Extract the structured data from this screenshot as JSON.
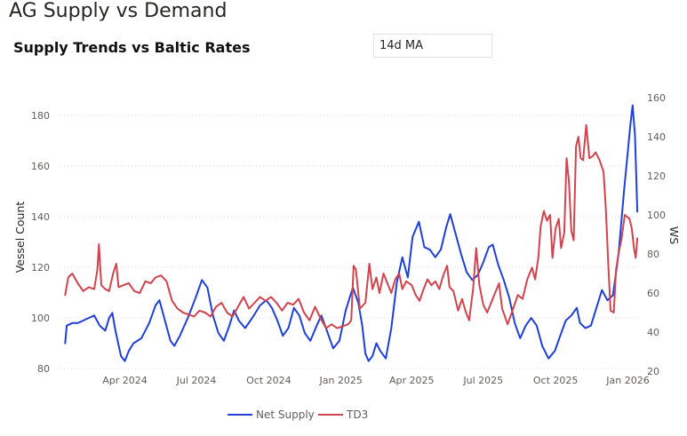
{
  "page": {
    "title": "AG Supply vs Demand"
  },
  "visual": {
    "title": "Supply Trends vs Baltic Rates"
  },
  "ma_selector": {
    "value": "14d MA"
  },
  "colors": {
    "net_supply": "#1f3fd6",
    "td3": "#cf444e",
    "grid": "#d9d9d9"
  },
  "chart_data": {
    "type": "line",
    "title": "Supply Trends vs Baltic Rates",
    "ylabel": "Vessel Count",
    "y2label": "WS",
    "xlabel": "",
    "x_ticks": [
      "Apr 2024",
      "Jul 2024",
      "Oct 2024",
      "Jan 2025",
      "Apr 2025",
      "Jul 2025",
      "Oct 2025",
      "Jan 2026"
    ],
    "y_ticks": [
      80,
      100,
      120,
      140,
      160,
      180
    ],
    "y2_ticks": [
      20,
      40,
      60,
      80,
      100,
      120,
      140,
      160
    ],
    "ylim": [
      79,
      187
    ],
    "y2lim": [
      20,
      160
    ],
    "xlim": [
      "2024-01-10",
      "2026-01-14"
    ],
    "grid": true,
    "legend": "bottom-center",
    "series": [
      {
        "name": "Net Supply",
        "axis": "left",
        "points": [
          [
            "2024-01-16",
            90
          ],
          [
            "2024-01-18",
            97
          ],
          [
            "2024-01-25",
            98
          ],
          [
            "2024-02-01",
            98
          ],
          [
            "2024-02-08",
            99
          ],
          [
            "2024-02-15",
            100
          ],
          [
            "2024-02-22",
            101
          ],
          [
            "2024-02-29",
            97
          ],
          [
            "2024-03-07",
            95
          ],
          [
            "2024-03-12",
            100
          ],
          [
            "2024-03-16",
            102
          ],
          [
            "2024-03-20",
            95
          ],
          [
            "2024-03-27",
            85
          ],
          [
            "2024-04-01",
            83
          ],
          [
            "2024-04-06",
            87
          ],
          [
            "2024-04-12",
            90
          ],
          [
            "2024-04-22",
            92
          ],
          [
            "2024-05-02",
            98
          ],
          [
            "2024-05-10",
            105
          ],
          [
            "2024-05-15",
            107
          ],
          [
            "2024-05-22",
            99
          ],
          [
            "2024-05-29",
            91
          ],
          [
            "2024-06-03",
            89
          ],
          [
            "2024-06-10",
            93
          ],
          [
            "2024-06-20",
            100
          ],
          [
            "2024-06-30",
            108
          ],
          [
            "2024-07-08",
            115
          ],
          [
            "2024-07-15",
            112
          ],
          [
            "2024-07-22",
            101
          ],
          [
            "2024-07-29",
            94
          ],
          [
            "2024-08-05",
            91
          ],
          [
            "2024-08-12",
            97
          ],
          [
            "2024-08-18",
            103
          ],
          [
            "2024-08-24",
            99
          ],
          [
            "2024-09-01",
            96
          ],
          [
            "2024-09-10",
            100
          ],
          [
            "2024-09-20",
            105
          ],
          [
            "2024-09-28",
            107
          ],
          [
            "2024-10-05",
            104
          ],
          [
            "2024-10-12",
            99
          ],
          [
            "2024-10-19",
            93
          ],
          [
            "2024-10-26",
            96
          ],
          [
            "2024-11-02",
            104
          ],
          [
            "2024-11-09",
            101
          ],
          [
            "2024-11-16",
            94
          ],
          [
            "2024-11-23",
            91
          ],
          [
            "2024-12-01",
            97
          ],
          [
            "2024-12-07",
            101
          ],
          [
            "2024-12-14",
            95
          ],
          [
            "2024-12-22",
            88
          ],
          [
            "2024-12-30",
            91
          ],
          [
            "2025-01-07",
            103
          ],
          [
            "2025-01-16",
            112
          ],
          [
            "2025-01-23",
            106
          ],
          [
            "2025-01-28",
            97
          ],
          [
            "2025-02-01",
            86
          ],
          [
            "2025-02-05",
            83
          ],
          [
            "2025-02-10",
            85
          ],
          [
            "2025-02-15",
            90
          ],
          [
            "2025-02-20",
            87
          ],
          [
            "2025-02-27",
            84
          ],
          [
            "2025-03-06",
            96
          ],
          [
            "2025-03-13",
            114
          ],
          [
            "2025-03-20",
            124
          ],
          [
            "2025-03-27",
            116
          ],
          [
            "2025-04-02",
            132
          ],
          [
            "2025-04-10",
            138
          ],
          [
            "2025-04-17",
            128
          ],
          [
            "2025-04-24",
            127
          ],
          [
            "2025-05-01",
            124
          ],
          [
            "2025-05-08",
            127
          ],
          [
            "2025-05-15",
            136
          ],
          [
            "2025-05-20",
            141
          ],
          [
            "2025-05-27",
            133
          ],
          [
            "2025-06-03",
            125
          ],
          [
            "2025-06-10",
            118
          ],
          [
            "2025-06-17",
            115
          ],
          [
            "2025-06-24",
            117
          ],
          [
            "2025-07-01",
            122
          ],
          [
            "2025-07-08",
            128
          ],
          [
            "2025-07-13",
            129
          ],
          [
            "2025-07-20",
            121
          ],
          [
            "2025-07-27",
            115
          ],
          [
            "2025-08-03",
            108
          ],
          [
            "2025-08-10",
            98
          ],
          [
            "2025-08-17",
            92
          ],
          [
            "2025-08-24",
            97
          ],
          [
            "2025-08-31",
            100
          ],
          [
            "2025-09-07",
            97
          ],
          [
            "2025-09-14",
            89
          ],
          [
            "2025-09-22",
            84
          ],
          [
            "2025-09-30",
            87
          ],
          [
            "2025-10-07",
            93
          ],
          [
            "2025-10-14",
            99
          ],
          [
            "2025-10-21",
            101
          ],
          [
            "2025-10-28",
            104
          ],
          [
            "2025-11-01",
            98
          ],
          [
            "2025-11-08",
            96
          ],
          [
            "2025-11-15",
            97
          ],
          [
            "2025-11-22",
            104
          ],
          [
            "2025-11-29",
            111
          ],
          [
            "2025-12-06",
            107
          ],
          [
            "2025-12-13",
            109
          ],
          [
            "2025-12-20",
            125
          ],
          [
            "2025-12-27",
            150
          ],
          [
            "2026-01-04",
            176
          ],
          [
            "2026-01-07",
            184
          ],
          [
            "2026-01-10",
            172
          ],
          [
            "2026-01-13",
            142
          ]
        ]
      },
      {
        "name": "TD3",
        "axis": "right",
        "points": [
          [
            "2024-01-16",
            59
          ],
          [
            "2024-01-20",
            68
          ],
          [
            "2024-01-25",
            70
          ],
          [
            "2024-02-01",
            65
          ],
          [
            "2024-02-08",
            61
          ],
          [
            "2024-02-15",
            63
          ],
          [
            "2024-02-22",
            62
          ],
          [
            "2024-02-26",
            72
          ],
          [
            "2024-02-28",
            85
          ],
          [
            "2024-03-02",
            64
          ],
          [
            "2024-03-07",
            62
          ],
          [
            "2024-03-12",
            61
          ],
          [
            "2024-03-17",
            70
          ],
          [
            "2024-03-21",
            75
          ],
          [
            "2024-03-24",
            63
          ],
          [
            "2024-03-30",
            64
          ],
          [
            "2024-04-06",
            65
          ],
          [
            "2024-04-13",
            61
          ],
          [
            "2024-04-20",
            60
          ],
          [
            "2024-04-27",
            66
          ],
          [
            "2024-05-04",
            65
          ],
          [
            "2024-05-10",
            68
          ],
          [
            "2024-05-17",
            69
          ],
          [
            "2024-05-24",
            66
          ],
          [
            "2024-05-31",
            56
          ],
          [
            "2024-06-07",
            52
          ],
          [
            "2024-06-14",
            50
          ],
          [
            "2024-06-21",
            49
          ],
          [
            "2024-06-28",
            48
          ],
          [
            "2024-07-05",
            51
          ],
          [
            "2024-07-12",
            50
          ],
          [
            "2024-07-19",
            48
          ],
          [
            "2024-07-26",
            53
          ],
          [
            "2024-08-02",
            55
          ],
          [
            "2024-08-09",
            50
          ],
          [
            "2024-08-16",
            48
          ],
          [
            "2024-08-23",
            53
          ],
          [
            "2024-08-30",
            58
          ],
          [
            "2024-09-06",
            52
          ],
          [
            "2024-09-13",
            55
          ],
          [
            "2024-09-20",
            58
          ],
          [
            "2024-09-27",
            56
          ],
          [
            "2024-10-04",
            58
          ],
          [
            "2024-10-11",
            55
          ],
          [
            "2024-10-18",
            51
          ],
          [
            "2024-10-25",
            55
          ],
          [
            "2024-11-01",
            54
          ],
          [
            "2024-11-08",
            57
          ],
          [
            "2024-11-15",
            50
          ],
          [
            "2024-11-22",
            46
          ],
          [
            "2024-11-29",
            53
          ],
          [
            "2024-12-06",
            47
          ],
          [
            "2024-12-13",
            42
          ],
          [
            "2024-12-20",
            44
          ],
          [
            "2024-12-27",
            42
          ],
          [
            "2025-01-03",
            43
          ],
          [
            "2025-01-10",
            44
          ],
          [
            "2025-01-14",
            46
          ],
          [
            "2025-01-17",
            74
          ],
          [
            "2025-01-20",
            72
          ],
          [
            "2025-01-25",
            52
          ],
          [
            "2025-02-01",
            55
          ],
          [
            "2025-02-06",
            75
          ],
          [
            "2025-02-10",
            62
          ],
          [
            "2025-02-15",
            68
          ],
          [
            "2025-02-19",
            60
          ],
          [
            "2025-02-24",
            70
          ],
          [
            "2025-03-01",
            65
          ],
          [
            "2025-03-06",
            60
          ],
          [
            "2025-03-11",
            67
          ],
          [
            "2025-03-16",
            70
          ],
          [
            "2025-03-20",
            62
          ],
          [
            "2025-03-25",
            66
          ],
          [
            "2025-04-01",
            64
          ],
          [
            "2025-04-06",
            59
          ],
          [
            "2025-04-11",
            56
          ],
          [
            "2025-04-16",
            62
          ],
          [
            "2025-04-21",
            67
          ],
          [
            "2025-04-26",
            64
          ],
          [
            "2025-05-01",
            66
          ],
          [
            "2025-05-06",
            62
          ],
          [
            "2025-05-11",
            69
          ],
          [
            "2025-05-16",
            74
          ],
          [
            "2025-05-19",
            63
          ],
          [
            "2025-05-24",
            61
          ],
          [
            "2025-05-30",
            51
          ],
          [
            "2025-06-04",
            57
          ],
          [
            "2025-06-09",
            50
          ],
          [
            "2025-06-13",
            46
          ],
          [
            "2025-06-18",
            62
          ],
          [
            "2025-06-22",
            83
          ],
          [
            "2025-06-26",
            64
          ],
          [
            "2025-07-01",
            54
          ],
          [
            "2025-07-06",
            50
          ],
          [
            "2025-07-11",
            55
          ],
          [
            "2025-07-16",
            60
          ],
          [
            "2025-07-21",
            65
          ],
          [
            "2025-07-25",
            52
          ],
          [
            "2025-08-01",
            44
          ],
          [
            "2025-08-08",
            52
          ],
          [
            "2025-08-14",
            59
          ],
          [
            "2025-08-20",
            57
          ],
          [
            "2025-08-26",
            67
          ],
          [
            "2025-09-01",
            73
          ],
          [
            "2025-09-05",
            67
          ],
          [
            "2025-09-09",
            78
          ],
          [
            "2025-09-12",
            94
          ],
          [
            "2025-09-16",
            102
          ],
          [
            "2025-09-20",
            97
          ],
          [
            "2025-09-24",
            100
          ],
          [
            "2025-09-27",
            78
          ],
          [
            "2025-10-01",
            93
          ],
          [
            "2025-10-05",
            98
          ],
          [
            "2025-10-08",
            83
          ],
          [
            "2025-10-12",
            91
          ],
          [
            "2025-10-15",
            129
          ],
          [
            "2025-10-18",
            117
          ],
          [
            "2025-10-21",
            92
          ],
          [
            "2025-10-24",
            87
          ],
          [
            "2025-10-27",
            135
          ],
          [
            "2025-10-30",
            140
          ],
          [
            "2025-11-02",
            129
          ],
          [
            "2025-11-05",
            128
          ],
          [
            "2025-11-09",
            146
          ],
          [
            "2025-11-13",
            129
          ],
          [
            "2025-11-17",
            130
          ],
          [
            "2025-11-21",
            132
          ],
          [
            "2025-11-26",
            128
          ],
          [
            "2025-12-01",
            122
          ],
          [
            "2025-12-04",
            103
          ],
          [
            "2025-12-07",
            75
          ],
          [
            "2025-12-10",
            51
          ],
          [
            "2025-12-14",
            50
          ],
          [
            "2025-12-17",
            72
          ],
          [
            "2025-12-20",
            80
          ],
          [
            "2025-12-24",
            88
          ],
          [
            "2025-12-28",
            100
          ],
          [
            "2026-01-03",
            98
          ],
          [
            "2026-01-06",
            93
          ],
          [
            "2026-01-09",
            82
          ],
          [
            "2026-01-11",
            78
          ],
          [
            "2026-01-13",
            88
          ]
        ]
      }
    ]
  }
}
